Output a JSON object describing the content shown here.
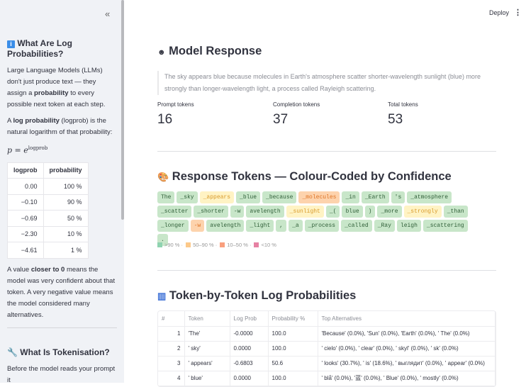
{
  "sidebar": {
    "collapse_icon": "«",
    "section1_title": "What Are Log Probabilities?",
    "p1_a": "Large Language Models (LLMs) don't just produce text — they assign a ",
    "p1_b": "probability",
    "p1_c": " to every possible next token at each step.",
    "p2_a": "A ",
    "p2_b": "log probability",
    "p2_c": " (logprob) is the natural logarithm of that probability:",
    "formula_base": "p = e",
    "formula_exp": "logprob",
    "table_headers": [
      "logprob",
      "probability"
    ],
    "table_rows": [
      [
        "0.00",
        "100 %"
      ],
      [
        "−0.10",
        "90 %"
      ],
      [
        "−0.69",
        "50 %"
      ],
      [
        "−2.30",
        "10 %"
      ],
      [
        "−4.61",
        "1 %"
      ]
    ],
    "p3_a": "A value ",
    "p3_b": "closer to 0",
    "p3_c": " means the model was very confident about that token. A very negative value means the model considered many alternatives.",
    "section2_title": "What Is Tokenisation?",
    "p4": "Before the model reads your prompt it"
  },
  "header": {
    "deploy": "Deploy",
    "menu_icon": "⋮"
  },
  "response": {
    "title": "Model Response",
    "text": "The sky appears blue because molecules in Earth's atmosphere scatter shorter-wavelength sunlight (blue) more strongly than longer-wavelength light, a process called Rayleigh scattering.",
    "metrics": [
      {
        "label": "Prompt tokens",
        "value": "16"
      },
      {
        "label": "Completion tokens",
        "value": "37"
      },
      {
        "label": "Total tokens",
        "value": "53"
      }
    ]
  },
  "tokens_section": {
    "title": "Response Tokens — Colour-Coded by Confidence",
    "tokens": [
      [
        "The",
        "g"
      ],
      [
        "_sky",
        "g"
      ],
      [
        "_appears",
        "y"
      ],
      [
        "_blue",
        "g"
      ],
      [
        "_because",
        "g"
      ],
      [
        "_molecules",
        "o"
      ],
      [
        "_in",
        "g"
      ],
      [
        "_Earth",
        "g"
      ],
      [
        "'s",
        "g"
      ],
      [
        "_atmosphere",
        "g"
      ],
      [
        "_scatter",
        "g"
      ],
      [
        "_shorter",
        "g"
      ],
      [
        "-w",
        "g"
      ],
      [
        "avelength",
        "g"
      ],
      [
        "_sunlight",
        "y"
      ],
      [
        "_(",
        "g"
      ],
      [
        "blue",
        "g"
      ],
      [
        ")",
        "g"
      ],
      [
        "_more",
        "g"
      ],
      [
        "_strongly",
        "y"
      ],
      [
        "_than",
        "g"
      ],
      [
        "_longer",
        "g"
      ],
      [
        "-w",
        "o"
      ],
      [
        "avelength",
        "g"
      ],
      [
        "_light",
        "g"
      ],
      [
        ",",
        "g"
      ],
      [
        "_a",
        "g"
      ],
      [
        "_process",
        "g"
      ],
      [
        "_called",
        "g"
      ],
      [
        "_Ray",
        "g"
      ],
      [
        "leigh",
        "g"
      ],
      [
        "_scattering",
        "g"
      ],
      [
        ".",
        "g"
      ]
    ],
    "legend": [
      {
        "label": ">90 % ·",
        "color": "#8fd3b0"
      },
      {
        "label": "50–90 % ·",
        "color": "#fcc98a"
      },
      {
        "label": "10–50 % ·",
        "color": "#f9a07e"
      },
      {
        "label": "<10 %",
        "color": "#e681a3"
      }
    ]
  },
  "table_section": {
    "title": "Token-by-Token Log Probabilities",
    "headers": [
      "#",
      "Token",
      "Log Prob",
      "Probability %",
      "Top Alternatives"
    ],
    "rows": [
      [
        "1",
        "'The'",
        "-0.0000",
        "100.0",
        "'Because' (0.0%), 'Sun' (0.0%), 'Earth' (0.0%), ' The' (0.0%)"
      ],
      [
        "2",
        "' sky'",
        "0.0000",
        "100.0",
        "' cielo' (0.0%), ' clear' (0.0%), ' skyl' (0.0%), ' sk' (0.0%)"
      ],
      [
        "3",
        "' appears'",
        "-0.6803",
        "50.6",
        "' looks' (30.7%), ' is' (18.6%), ' выглядит' (0.0%), ' appear' (0.0%)"
      ],
      [
        "4",
        "' blue'",
        "0.0000",
        "100.0",
        "' blå' (0.0%), '蓝' (0.0%), ' Blue' (0.0%), ' mostly' (0.0%)"
      ]
    ]
  }
}
